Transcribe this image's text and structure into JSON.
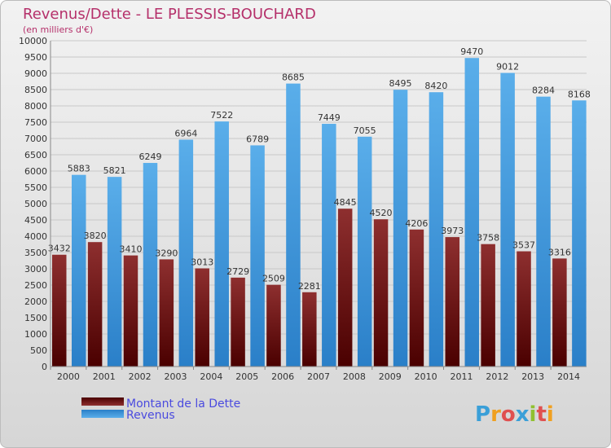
{
  "chart_data": {
    "type": "bar",
    "title": "Revenus/Dette - LE PLESSIS-BOUCHARD",
    "subtitle": "(en milliers d'€)",
    "categories": [
      "2000",
      "2001",
      "2002",
      "2003",
      "2004",
      "2005",
      "2006",
      "2007",
      "2008",
      "2009",
      "2010",
      "2011",
      "2012",
      "2013",
      "2014"
    ],
    "series": [
      {
        "name": "Montant de la Dette",
        "values": [
          3432,
          3820,
          3410,
          3290,
          3013,
          2729,
          2509,
          2281,
          4845,
          4520,
          4206,
          3973,
          3758,
          3537,
          3316
        ],
        "color": "#7a1e1e"
      },
      {
        "name": "Revenus",
        "values": [
          5883,
          5821,
          6249,
          6964,
          7522,
          6789,
          8685,
          7449,
          7055,
          8495,
          8420,
          9470,
          9012,
          8284,
          8168
        ],
        "color": "#4a9fe0"
      }
    ],
    "data_labels": [
      [
        "3432",
        "3820",
        "3410",
        "3290",
        "3013",
        "2729",
        "2509",
        "2281",
        "4845",
        "4520",
        "4206",
        "3973",
        "3758",
        "3537",
        "3316"
      ],
      [
        "5883",
        "5821",
        "6249",
        "6964",
        "7522",
        "6789",
        "8685",
        "7449",
        "7055",
        "8495",
        "8420",
        "9470",
        "9012",
        "8284",
        "8168"
      ]
    ],
    "ylim": [
      0,
      10000
    ],
    "ytick_step": 500,
    "grid": true,
    "legend_position": "bottom-left"
  },
  "logo": {
    "text": "Proxiti"
  }
}
